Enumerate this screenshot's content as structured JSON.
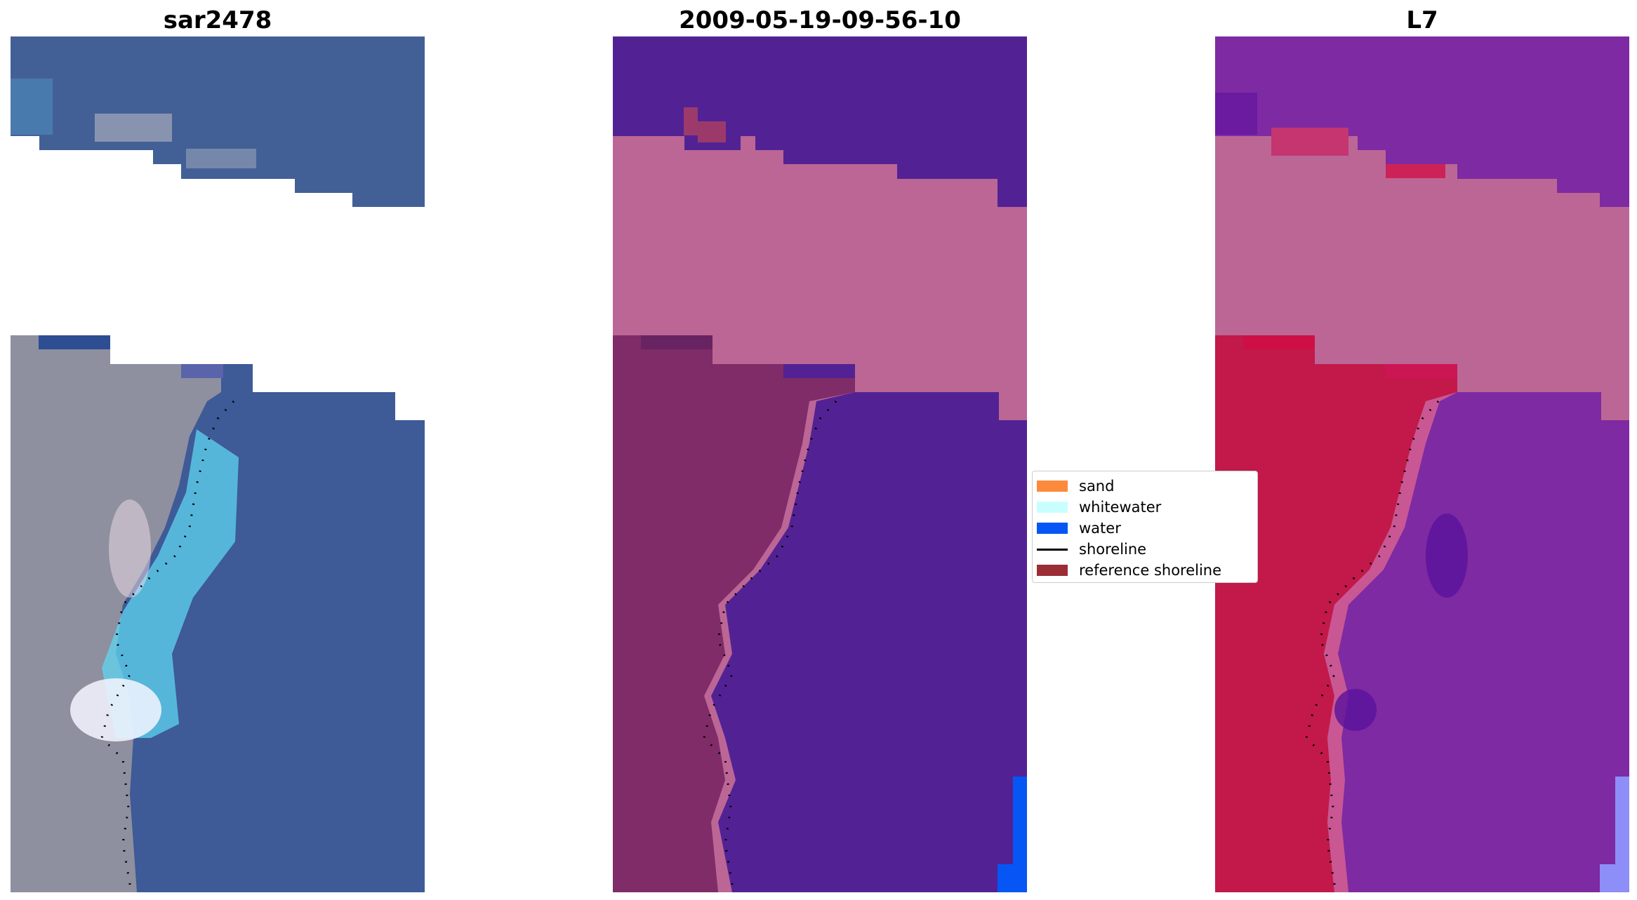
{
  "panels": [
    {
      "title": "sar2478"
    },
    {
      "title": "2009-05-19-09-56-10"
    },
    {
      "title": "L7"
    }
  ],
  "legend": {
    "items": [
      {
        "label": "sand",
        "color": "#fd8a3c",
        "kind": "patch"
      },
      {
        "label": "whitewater",
        "color": "#c8fffe",
        "kind": "patch"
      },
      {
        "label": "water",
        "color": "#0656f5",
        "kind": "patch"
      },
      {
        "label": "shoreline",
        "color": "#000000",
        "kind": "line"
      },
      {
        "label": "reference shoreline",
        "color": "#9b2d34",
        "kind": "patch"
      }
    ]
  },
  "colors": {
    "sea_rgb": "#3e5a97",
    "land_rgb": "#8e8f9f",
    "whitewater_rgb": "#5fd6f0",
    "water_class": "#522294",
    "land_class": "#7f2c68",
    "masked_class": "#bc6696",
    "water_band": "#7e2aa2",
    "land_band": "#c2194a",
    "masked_band": "#bc6696"
  }
}
